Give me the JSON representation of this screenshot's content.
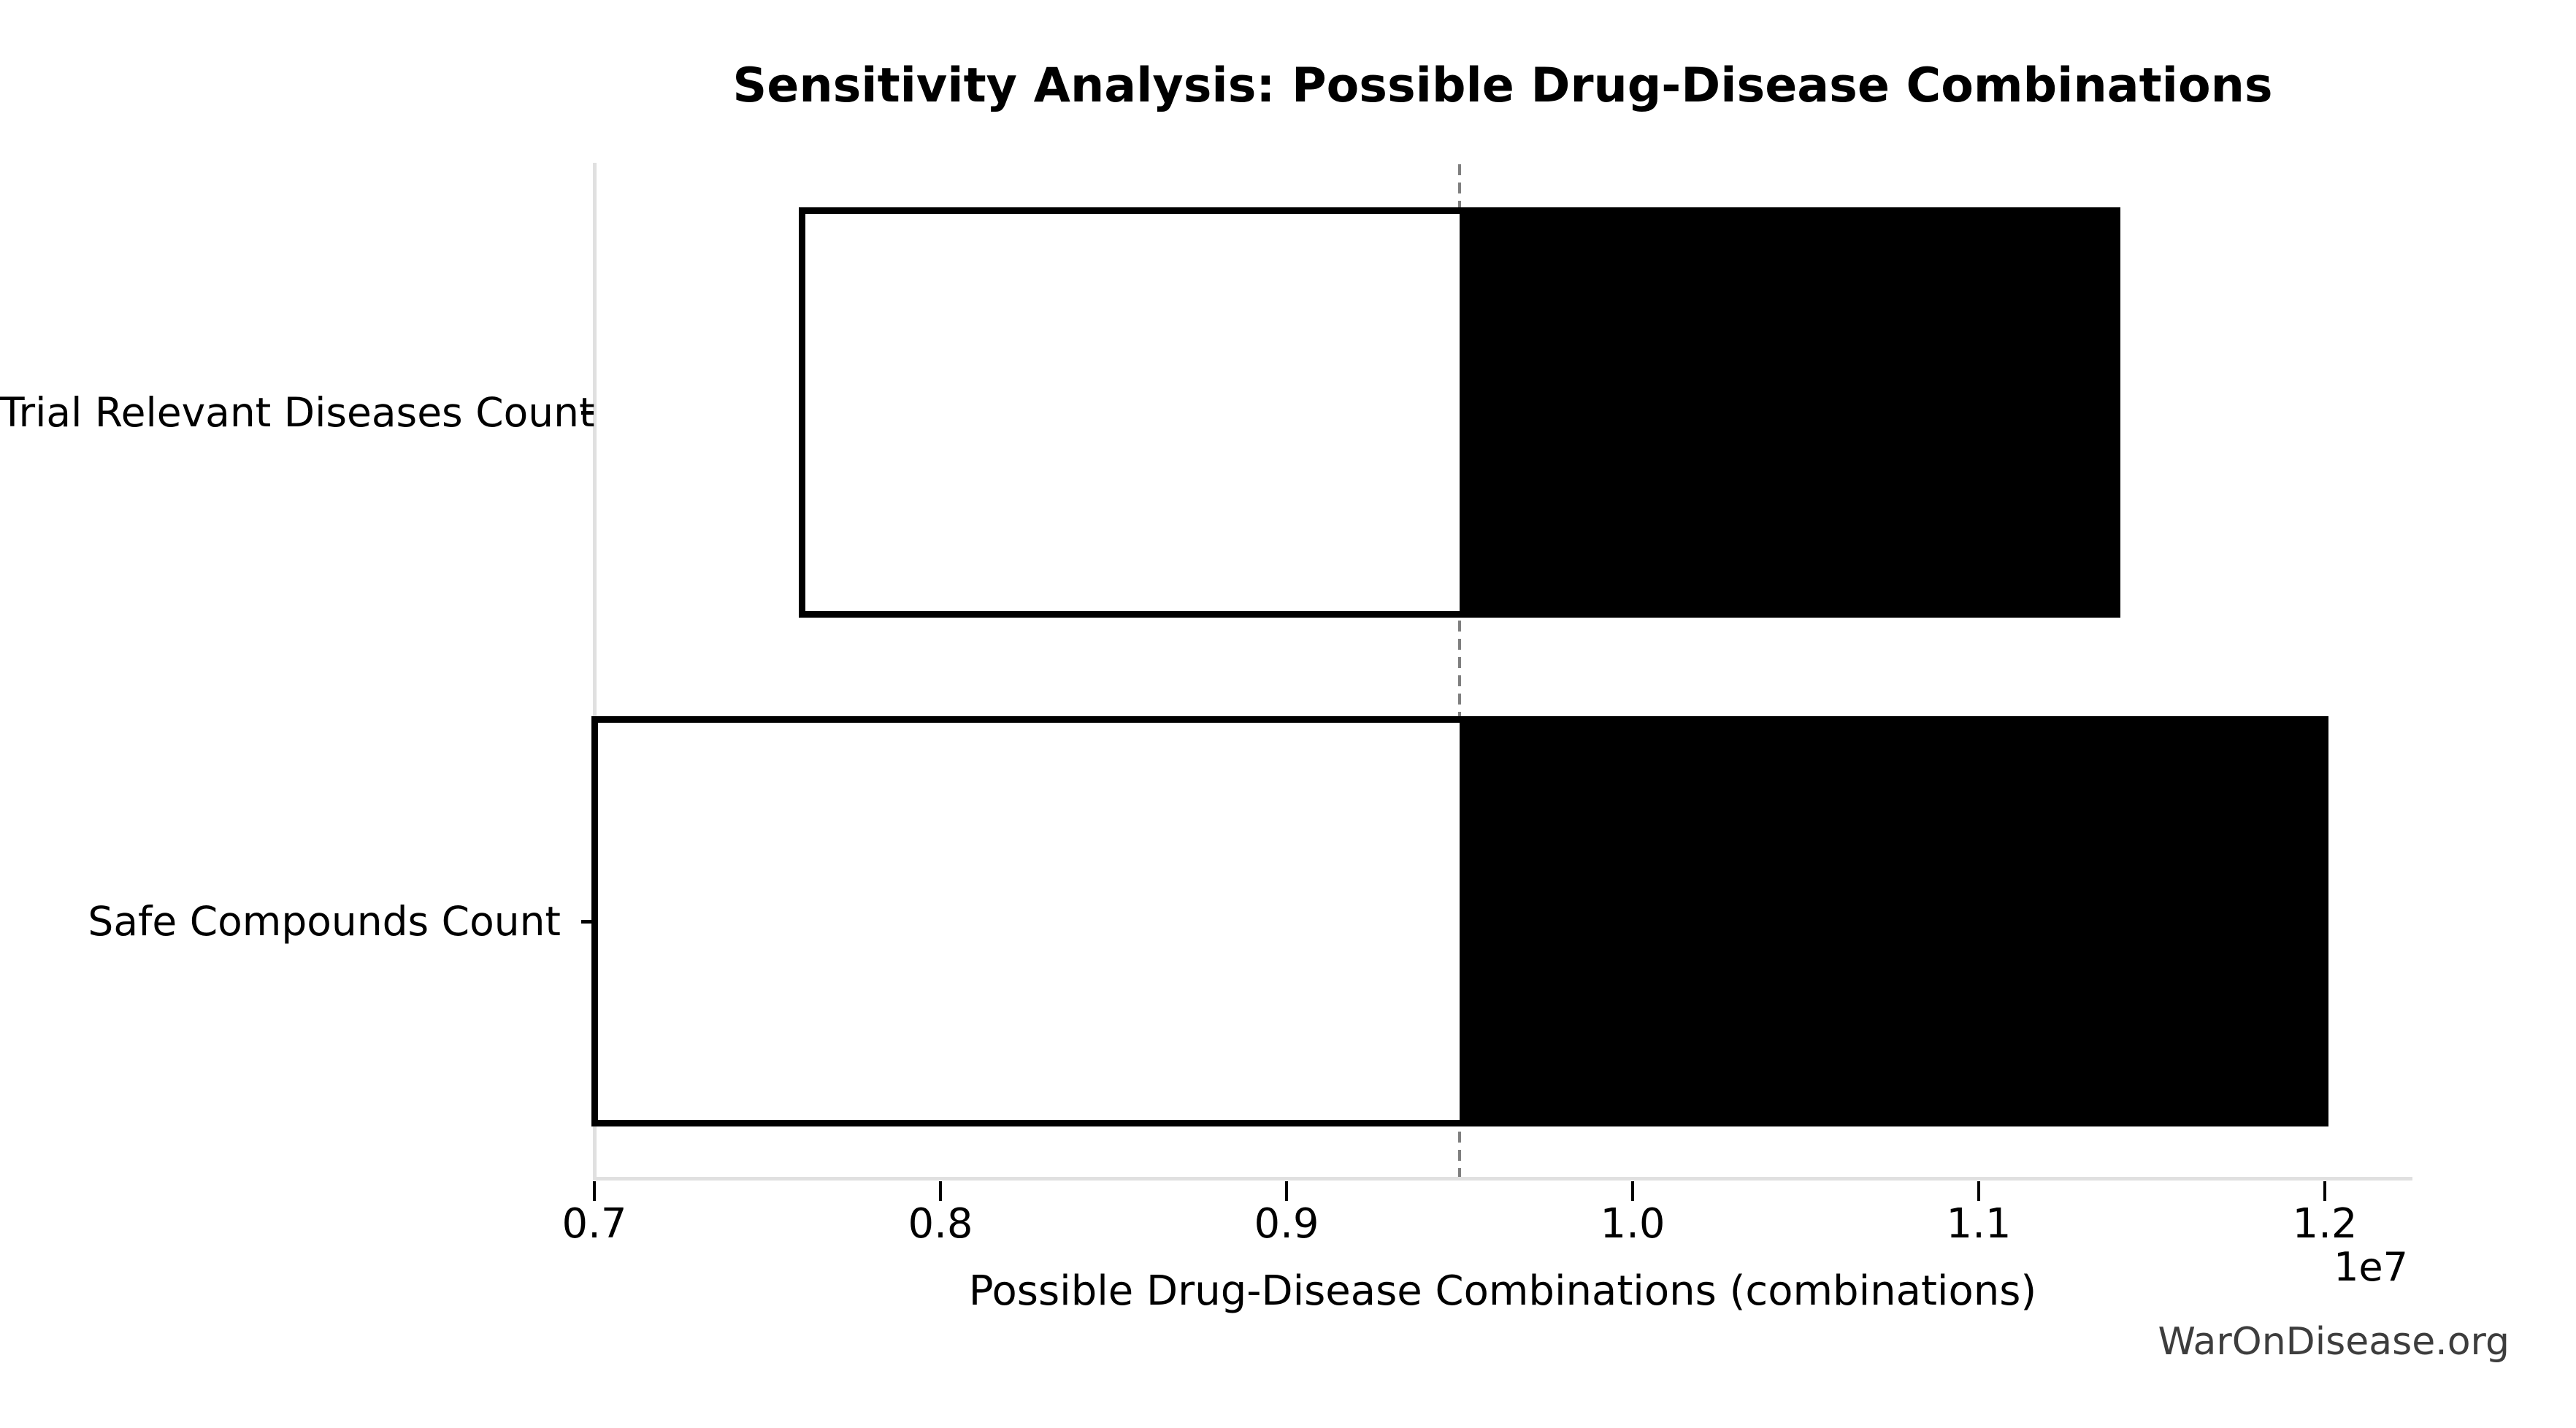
{
  "title": "Sensitivity Analysis: Possible Drug-Disease Combinations",
  "watermark": "WarOnDisease.org",
  "colors": {
    "background": "#ffffff",
    "spine": "#e0e0e0",
    "tick": "#000000",
    "title": "#000000",
    "baseline_line": "#7f7f7f",
    "bar_low_fill": "#ffffff",
    "bar_high_fill": "#000000",
    "bar_edge": "#000000",
    "watermark": "#3d3d3d"
  },
  "chart_data": {
    "type": "bar",
    "subtype": "tornado-sensitivity",
    "orientation": "horizontal",
    "title": "Sensitivity Analysis: Possible Drug-Disease Combinations",
    "xlabel": "Possible Drug-Disease Combinations (combinations)",
    "ylabel": "",
    "axis_offset_label": "1e7",
    "categories": [
      "Trial Relevant Diseases Count",
      "Safe Compounds Count"
    ],
    "series": [
      {
        "name": "low_value",
        "values": [
          7600000,
          7000000
        ],
        "fill": "#ffffff"
      },
      {
        "name": "high_value",
        "values": [
          11400000,
          12000000
        ],
        "fill": "#000000"
      }
    ],
    "baseline": 9500000,
    "baseline_style": "dashed",
    "xlim": [
      7000000,
      12240000
    ],
    "xticks": {
      "values": [
        7000000,
        8000000,
        9000000,
        10000000,
        11000000,
        12000000
      ],
      "labels": [
        "0.7",
        "0.8",
        "0.9",
        "1.0",
        "1.1",
        "1.2"
      ]
    },
    "grid": false,
    "legend_position": "none"
  }
}
